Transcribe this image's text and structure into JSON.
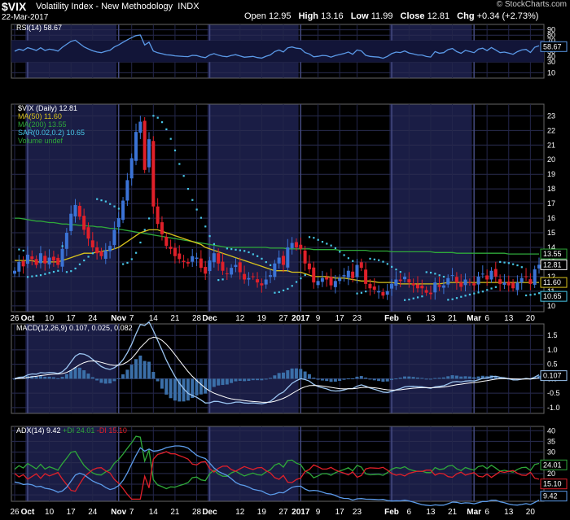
{
  "header": {
    "symbol": "$VIX",
    "name": "Volatility Index - New Methodology",
    "exchange": "INDX",
    "date": "22-Mar-2017",
    "brand": "© StockCharts.com",
    "open_label": "Open",
    "open": "12.95",
    "high_label": "High",
    "high": "13.16",
    "low_label": "Low",
    "low": "11.99",
    "close_label": "Close",
    "close": "12.81",
    "chg_label": "Chg",
    "chg": "+0.34 (+2.73%)"
  },
  "colors": {
    "up": "#3b73d6",
    "down": "#e0202a",
    "ma50": "#d8c21c",
    "ma200": "#2fa83a",
    "sar": "#48c8e8",
    "rsi": "#5b9ae8",
    "macd": "#9cc6f2",
    "signal": "#ffffff",
    "hist": "#3b6fa8",
    "adx": "#5b9ae8",
    "pdi": "#2fa83a",
    "mdi": "#e0202a",
    "panel": "#0a0a22"
  },
  "x_labels": [
    {
      "t": "26",
      "i": 0
    },
    {
      "t": "Oct",
      "i": 3,
      "b": 1
    },
    {
      "t": "10",
      "i": 8
    },
    {
      "t": "17",
      "i": 13
    },
    {
      "t": "24",
      "i": 18
    },
    {
      "t": "Nov",
      "i": 24,
      "b": 1
    },
    {
      "t": "7",
      "i": 27
    },
    {
      "t": "14",
      "i": 32
    },
    {
      "t": "21",
      "i": 37
    },
    {
      "t": "28",
      "i": 42
    },
    {
      "t": "Dec",
      "i": 45,
      "b": 1
    },
    {
      "t": "12",
      "i": 52
    },
    {
      "t": "19",
      "i": 57
    },
    {
      "t": "27",
      "i": 62
    },
    {
      "t": "2017",
      "i": 66,
      "b": 1
    },
    {
      "t": "9",
      "i": 70
    },
    {
      "t": "17",
      "i": 75
    },
    {
      "t": "23",
      "i": 79
    },
    {
      "t": "Feb",
      "i": 87,
      "b": 1
    },
    {
      "t": "6",
      "i": 91
    },
    {
      "t": "13",
      "i": 96
    },
    {
      "t": "21",
      "i": 101
    },
    {
      "t": "Mar",
      "i": 106,
      "b": 1
    },
    {
      "t": "6",
      "i": 109
    },
    {
      "t": "13",
      "i": 114
    },
    {
      "t": "20",
      "i": 119
    }
  ],
  "rsi_panel": {
    "legend": "RSI(14) 58.67",
    "value_tag": "58.67",
    "ticks": [
      "90",
      "80",
      "70",
      "50",
      "40",
      "30",
      "10"
    ],
    "tick_values": [
      90,
      80,
      70,
      50,
      40,
      30,
      10
    ],
    "ylim": [
      0,
      100
    ]
  },
  "price_panel": {
    "legend_price": "$VIX (Daily) 12.81",
    "legend_ma50": "MA(50) 11.60",
    "legend_ma200": "MA(200) 13.55",
    "legend_sar": "SAR(0.02,0.2) 10.65",
    "legend_vol": "Volume undef",
    "ticks": [
      "23",
      "22",
      "21",
      "20",
      "19",
      "18",
      "17",
      "16",
      "15",
      "14",
      "13",
      "12",
      "11",
      "10"
    ],
    "tick_values": [
      23,
      22,
      21,
      20,
      19,
      18,
      17,
      16,
      15,
      14,
      13,
      12,
      11,
      10
    ],
    "tags": [
      {
        "t": "13.55",
        "v": 13.55,
        "c": "#2fa83a"
      },
      {
        "t": "12.81",
        "v": 12.81,
        "c": "#ffffff"
      },
      {
        "t": "11.60",
        "v": 11.6,
        "c": "#d8c21c"
      },
      {
        "t": "10.65",
        "v": 10.65,
        "c": "#48c8e8"
      }
    ],
    "ylim": [
      9.6,
      23.8
    ]
  },
  "macd_panel": {
    "legend": "MACD(12,26,9) 0.107, 0.025, 0.082",
    "value_tag": "0.107",
    "ticks": [
      "1.5",
      "1.0",
      "0.5",
      "0.0",
      "-0.5",
      "-1.0"
    ],
    "tick_values": [
      1.5,
      1.0,
      0.5,
      0.0,
      -0.5,
      -1.0
    ],
    "ylim": [
      -1.2,
      1.9
    ]
  },
  "adx_panel": {
    "legend_adx": "ADX(14) 9.42",
    "legend_pdi": "+DI 24.01",
    "legend_mdi": "-DI 15.10",
    "ticks": [
      "40",
      "35",
      "30",
      "25",
      "20",
      "15",
      "10"
    ],
    "tick_values": [
      40,
      35,
      30,
      25,
      20,
      15,
      10
    ],
    "tags": [
      {
        "t": "24.01",
        "v": 24.01,
        "c": "#2fa83a"
      },
      {
        "t": "15.10",
        "v": 15.1,
        "c": "#e0202a"
      },
      {
        "t": "9.42",
        "v": 9.42,
        "c": "#5b9ae8"
      }
    ],
    "ylim": [
      7,
      42
    ]
  },
  "chart_data": {
    "type": "line",
    "title": "$VIX Volatility Index - New Methodology INDX",
    "n_bars": 122,
    "close": [
      12.4,
      13.0,
      12.7,
      13.5,
      13.2,
      12.8,
      13.6,
      12.9,
      13.3,
      13.1,
      12.8,
      13.9,
      15.0,
      16.3,
      16.9,
      16.1,
      15.2,
      14.6,
      14.0,
      13.6,
      13.4,
      13.8,
      14.1,
      15.2,
      16.0,
      17.2,
      18.6,
      20.1,
      21.9,
      22.6,
      19.3,
      21.4,
      16.8,
      15.6,
      14.9,
      14.1,
      13.9,
      13.4,
      13.2,
      13.0,
      12.9,
      13.4,
      13.3,
      12.6,
      12.2,
      13.1,
      13.6,
      12.9,
      12.4,
      12.2,
      12.6,
      12.8,
      12.3,
      11.8,
      11.9,
      12.0,
      11.6,
      11.4,
      11.8,
      12.1,
      12.9,
      13.3,
      12.8,
      14.0,
      14.3,
      14.0,
      13.9,
      12.9,
      12.5,
      11.6,
      11.7,
      11.9,
      11.8,
      11.4,
      11.7,
      11.9,
      12.1,
      12.4,
      11.9,
      12.8,
      12.6,
      11.5,
      11.2,
      11.1,
      11.0,
      10.7,
      11.0,
      11.5,
      11.8,
      11.7,
      12.0,
      11.6,
      11.4,
      11.2,
      11.2,
      10.9,
      10.8,
      11.6,
      11.3,
      11.4,
      11.9,
      12.1,
      11.6,
      11.3,
      11.8,
      11.6,
      11.4,
      12.0,
      12.2,
      11.8,
      12.4,
      12.0,
      11.5,
      11.6,
      11.4,
      11.2,
      11.6,
      11.9,
      12.0,
      11.5,
      12.5,
      12.81
    ],
    "ma50": [
      13.1,
      13.1,
      13.1,
      13.1,
      13.1,
      13.0,
      13.0,
      13.0,
      13.0,
      13.0,
      13.0,
      13.1,
      13.2,
      13.3,
      13.4,
      13.5,
      13.6,
      13.6,
      13.6,
      13.7,
      13.7,
      13.8,
      13.8,
      13.9,
      14.0,
      14.2,
      14.4,
      14.6,
      14.8,
      15.0,
      15.1,
      15.2,
      15.2,
      15.2,
      15.1,
      15.0,
      14.9,
      14.8,
      14.7,
      14.6,
      14.5,
      14.4,
      14.3,
      14.2,
      14.0,
      13.9,
      13.8,
      13.7,
      13.6,
      13.5,
      13.4,
      13.3,
      13.2,
      13.1,
      13.0,
      12.9,
      12.8,
      12.7,
      12.6,
      12.5,
      12.4,
      12.4,
      12.4,
      12.4,
      12.3,
      12.3,
      12.3,
      12.2,
      12.1,
      12.0,
      12.0,
      12.0,
      12.0,
      11.95,
      11.9,
      11.9,
      11.9,
      11.85,
      11.8,
      11.75,
      11.7,
      11.7,
      11.7,
      11.65,
      11.6,
      11.6,
      11.6,
      11.6,
      11.55,
      11.5,
      11.5,
      11.5,
      11.5,
      11.5,
      11.5,
      11.5,
      11.5,
      11.5,
      11.5,
      11.55,
      11.6,
      11.6,
      11.6,
      11.6,
      11.6,
      11.6,
      11.6,
      11.6,
      11.6,
      11.6,
      11.6,
      11.6,
      11.6,
      11.6,
      11.6,
      11.6,
      11.6,
      11.6,
      11.6,
      11.6,
      11.6,
      11.6
    ],
    "ma200": [
      16.0,
      16.0,
      15.95,
      15.9,
      15.85,
      15.8,
      15.8,
      15.75,
      15.7,
      15.7,
      15.65,
      15.6,
      15.6,
      15.55,
      15.55,
      15.5,
      15.5,
      15.45,
      15.45,
      15.4,
      15.4,
      15.35,
      15.3,
      15.3,
      15.25,
      15.2,
      15.15,
      15.1,
      15.05,
      15.0,
      14.95,
      14.9,
      14.85,
      14.8,
      14.75,
      14.7,
      14.65,
      14.6,
      14.55,
      14.5,
      14.45,
      14.4,
      14.35,
      14.3,
      14.25,
      14.2,
      14.15,
      14.1,
      14.05,
      14.0,
      14.0,
      14.0,
      14.0,
      14.0,
      14.0,
      14.0,
      14.0,
      14.0,
      14.0,
      13.95,
      13.95,
      13.95,
      13.95,
      13.9,
      13.9,
      13.9,
      13.9,
      13.9,
      13.9,
      13.85,
      13.85,
      13.85,
      13.85,
      13.85,
      13.85,
      13.8,
      13.8,
      13.8,
      13.8,
      13.8,
      13.8,
      13.8,
      13.75,
      13.75,
      13.75,
      13.75,
      13.75,
      13.7,
      13.7,
      13.7,
      13.7,
      13.7,
      13.7,
      13.7,
      13.7,
      13.7,
      13.7,
      13.65,
      13.65,
      13.65,
      13.65,
      13.65,
      13.6,
      13.6,
      13.6,
      13.6,
      13.6,
      13.6,
      13.6,
      13.6,
      13.6,
      13.6,
      13.6,
      13.6,
      13.55,
      13.55,
      13.55,
      13.55,
      13.55,
      13.55,
      13.55,
      13.55
    ]
  }
}
